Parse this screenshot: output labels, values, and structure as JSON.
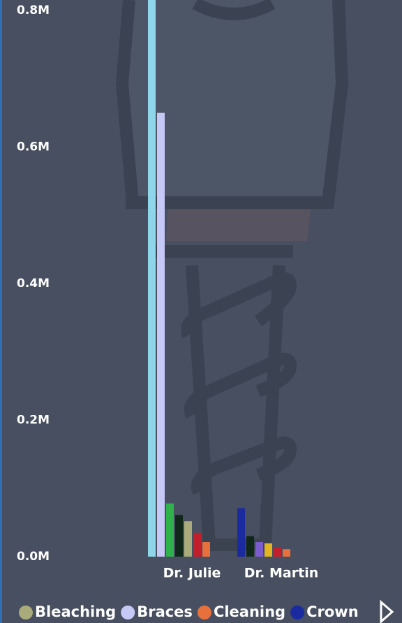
{
  "chart_data": {
    "type": "bar",
    "categories": [
      "Dr. Julie",
      "Dr. Martin"
    ],
    "series": [
      {
        "name": "Crown",
        "color": "#1c2aa0",
        "values": [
          null,
          71000
        ]
      },
      {
        "color": "#8fd6ea",
        "values": [
          820000,
          null
        ]
      },
      {
        "name": "Braces",
        "color": "#c6c8f6",
        "values": [
          650000,
          null
        ]
      },
      {
        "color": "#2fb24c",
        "values": [
          78000,
          null
        ]
      },
      {
        "color": "#10281a",
        "values": [
          61000,
          30000
        ]
      },
      {
        "name": "Bleaching",
        "color": "#a9ac7a",
        "values": [
          52000,
          null
        ]
      },
      {
        "color": "#7a5ccc",
        "values": [
          null,
          21500
        ]
      },
      {
        "color": "#e1b421",
        "values": [
          null,
          19500
        ]
      },
      {
        "color": "#c21f2c",
        "values": [
          35000,
          14000
        ]
      },
      {
        "name": "Cleaning",
        "color": "#e8703c",
        "values": [
          21500,
          11000
        ]
      }
    ],
    "legend_order": [
      5,
      2,
      9,
      0
    ],
    "ylim": [
      0,
      815000
    ],
    "yticks": [
      {
        "value": 0,
        "label": "0.0M"
      },
      {
        "value": 200000,
        "label": "0.2M"
      },
      {
        "value": 400000,
        "label": "0.4M"
      },
      {
        "value": 600000,
        "label": "0.6M"
      },
      {
        "value": 800000,
        "label": "0.8M"
      }
    ],
    "grid": false
  }
}
